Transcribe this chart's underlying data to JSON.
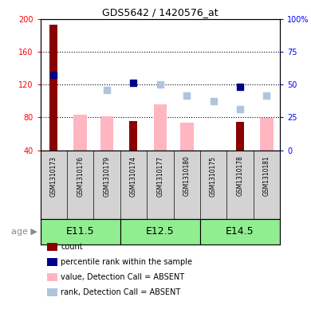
{
  "title": "GDS5642 / 1420576_at",
  "samples": [
    "GSM1310173",
    "GSM1310176",
    "GSM1310179",
    "GSM1310174",
    "GSM1310177",
    "GSM1310180",
    "GSM1310175",
    "GSM1310178",
    "GSM1310181"
  ],
  "count_values": [
    193,
    null,
    null,
    76,
    null,
    null,
    null,
    75,
    null
  ],
  "count_color": "#8B0000",
  "percentile_values": [
    132,
    null,
    null,
    122,
    null,
    null,
    null,
    117,
    null
  ],
  "percentile_color": "#00008B",
  "absent_value_values": [
    null,
    83,
    81,
    null,
    96,
    74,
    null,
    null,
    79
  ],
  "absent_value_color": "#FFB6C1",
  "absent_rank_values": [
    null,
    null,
    113,
    null,
    120,
    107,
    100,
    90,
    107
  ],
  "absent_rank_color": "#B0C4DE",
  "ylim_left": [
    40,
    200
  ],
  "ylim_right": [
    0,
    100
  ],
  "yticks_left": [
    40,
    80,
    120,
    160,
    200
  ],
  "ytick_labels_left": [
    "40",
    "80",
    "120",
    "160",
    "200"
  ],
  "yticks_right": [
    0,
    25,
    50,
    75,
    100
  ],
  "ytick_labels_right": [
    "0",
    "25",
    "50",
    "75",
    "100%"
  ],
  "age_groups": [
    {
      "label": "E11.5",
      "start": 0,
      "end": 3,
      "color": "#90EE90"
    },
    {
      "label": "E12.5",
      "start": 3,
      "end": 6,
      "color": "#90EE90"
    },
    {
      "label": "E14.5",
      "start": 6,
      "end": 9,
      "color": "#90EE90"
    }
  ],
  "legend_items": [
    {
      "label": "count",
      "color": "#8B0000"
    },
    {
      "label": "percentile rank within the sample",
      "color": "#00008B"
    },
    {
      "label": "value, Detection Call = ABSENT",
      "color": "#FFB6C1"
    },
    {
      "label": "rank, Detection Call = ABSENT",
      "color": "#B0C4DE"
    }
  ],
  "bar_bottom": 40,
  "absent_bar_width": 0.5,
  "count_bar_width": 0.3,
  "marker_size": 6
}
